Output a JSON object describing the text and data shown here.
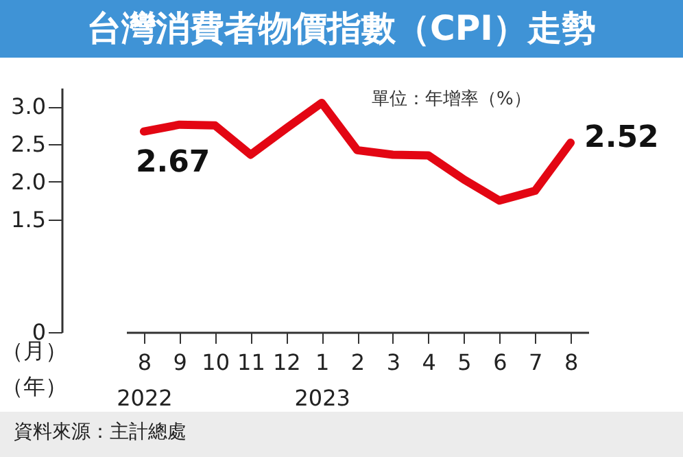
{
  "chart_data": {
    "type": "line",
    "title": "台灣消費者物價指數（CPI）走勢",
    "xlabel": "（月）",
    "categories": [
      "8\n2022",
      "9",
      "10",
      "11",
      "12",
      "1\n2023",
      "2",
      "3",
      "4",
      "5",
      "6",
      "7",
      "8"
    ],
    "series": [
      {
        "color": "#e30613",
        "values": [
          2.67,
          2.76,
          2.75,
          2.36,
          2.71,
          3.05,
          2.42,
          2.36,
          2.35,
          2.03,
          1.75,
          1.88,
          2.52
        ],
        "value_labels": [
          "2.67",
          null,
          null,
          null,
          null,
          null,
          null,
          null,
          null,
          null,
          null,
          null,
          "2.52"
        ]
      }
    ],
    "ylim": [
      0,
      3.25
    ],
    "yticks": [
      {
        "value": 0,
        "label": "0"
      },
      {
        "value": 1.5,
        "label": "1.5"
      },
      {
        "value": 2.0,
        "label": "2.0"
      },
      {
        "value": 2.5,
        "label": "2.5"
      },
      {
        "value": 3.0,
        "label": "3.0"
      }
    ],
    "grid": false,
    "marker": "none",
    "line_style": "solid",
    "annotations": [
      "單位：年增率（%）",
      "資料來源：主計總處",
      "（年）"
    ]
  }
}
